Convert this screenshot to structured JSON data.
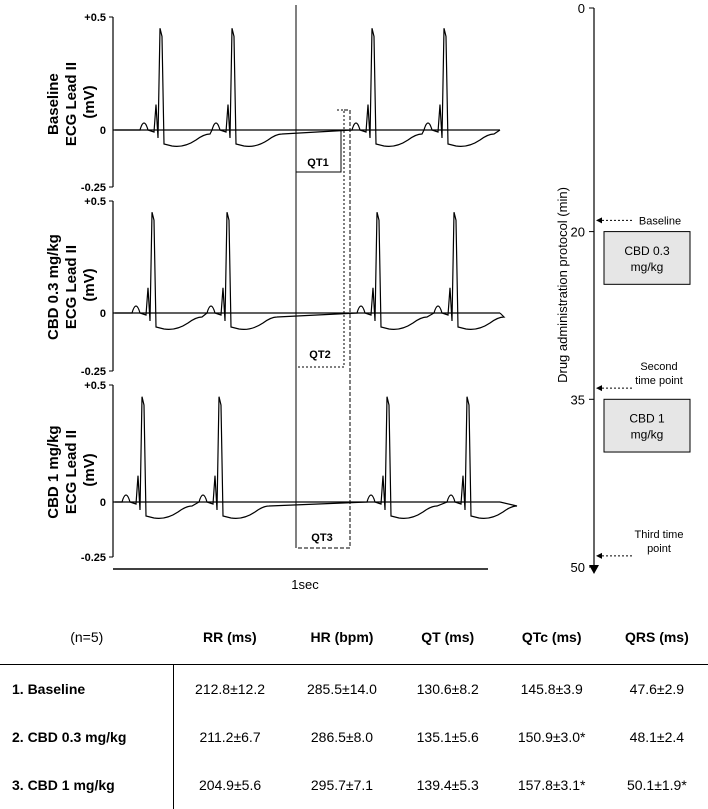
{
  "chart_data": {
    "type": "line",
    "panels": [
      {
        "ylabel_line1": "Baseline",
        "ylabel_line2": "ECG Lead II",
        "ylabel_line3": "(mV)",
        "ymax_label": "+0.5",
        "zero_label": "0",
        "ymin_label": "-0.25",
        "qt_label": "QT1",
        "ylim": [
          -0.25,
          0.5
        ]
      },
      {
        "ylabel_line1": "CBD 0.3 mg/kg",
        "ylabel_line2": "ECG Lead II",
        "ylabel_line3": "(mV)",
        "ymax_label": "+0.5",
        "zero_label": "0",
        "ymin_label": "-0.25",
        "qt_label": "QT2",
        "ylim": [
          -0.25,
          0.5
        ]
      },
      {
        "ylabel_line1": "CBD 1 mg/kg",
        "ylabel_line2": "ECG Lead II",
        "ylabel_line3": "(mV)",
        "ymax_label": "+0.5",
        "zero_label": "0",
        "ymin_label": "-0.25",
        "qt_label": "QT3",
        "ylim": [
          -0.25,
          0.5
        ]
      }
    ],
    "xscale_label": "1sec",
    "protocol": {
      "ylabel": "Drug administration protocol (min)",
      "ticks": [
        "0",
        "20",
        "35",
        "50"
      ],
      "ylim": [
        0,
        50
      ],
      "markers": [
        {
          "label1": "Baseline",
          "label2": "",
          "time": 19
        },
        {
          "label1": "Second",
          "label2": "time point",
          "time": 34
        },
        {
          "label1": "Third time",
          "label2": "point",
          "time": 49
        }
      ],
      "boxes": [
        {
          "line1": "CBD 0.3",
          "line2": "mg/kg",
          "start": 20,
          "end": 24
        },
        {
          "line1": "CBD 1",
          "line2": "mg/kg",
          "start": 35,
          "end": 39
        }
      ]
    }
  },
  "table": {
    "headers": [
      "(n=5)",
      "RR (ms)",
      "HR (bpm)",
      "QT (ms)",
      "QTc (ms)",
      "QRS (ms)"
    ],
    "rows": [
      {
        "label": "1. Baseline",
        "values": [
          "212.8±12.2",
          "285.5±14.0",
          "130.6±8.2",
          "145.8±3.9",
          "47.6±2.9"
        ]
      },
      {
        "label": "2. CBD 0.3 mg/kg",
        "values": [
          "211.2±6.7",
          "286.5±8.0",
          "135.1±5.6",
          "150.9±3.0*",
          "48.1±2.4"
        ]
      },
      {
        "label": "3. CBD 1 mg/kg",
        "values": [
          "204.9±5.6",
          "295.7±7.1",
          "139.4±5.3",
          "157.8±3.1*",
          "50.1±1.9*"
        ]
      }
    ]
  }
}
